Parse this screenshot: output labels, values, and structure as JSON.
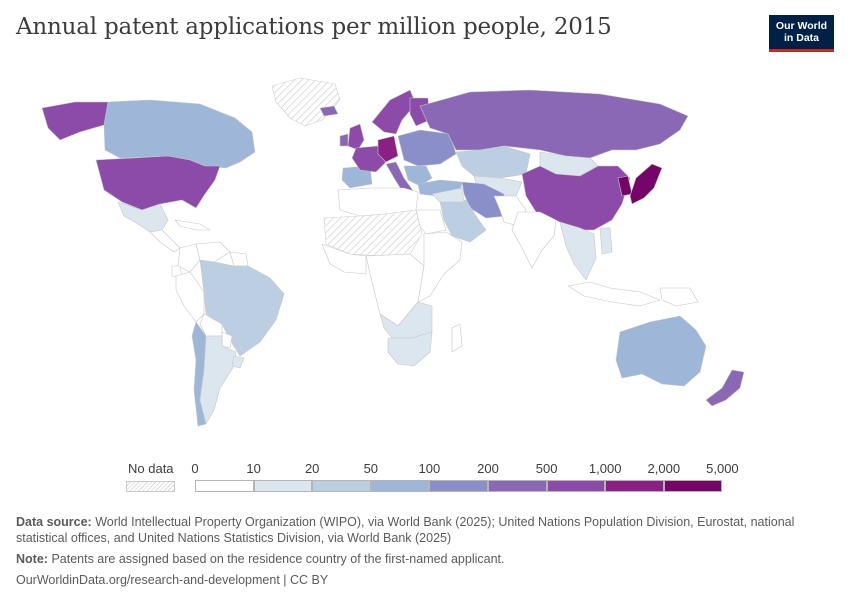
{
  "title": "Annual patent applications per million people, 2015",
  "logo": {
    "line1": "Our World",
    "line2": "in Data"
  },
  "legend": {
    "no_data_label": "No data",
    "ticks": [
      "0",
      "10",
      "20",
      "50",
      "100",
      "200",
      "500",
      "1,000",
      "2,000",
      "5,000"
    ],
    "colors": [
      "#ffffff",
      "#dbe6ee",
      "#bccfe2",
      "#9eb6d8",
      "#8a8fca",
      "#8b68b6",
      "#8c4ba8",
      "#8a1f86",
      "#76056a",
      "#3f0035"
    ]
  },
  "map_regions": [
    {
      "name": "Canada",
      "bin": 3
    },
    {
      "name": "United States",
      "bin": 6
    },
    {
      "name": "Alaska",
      "bin": 6
    },
    {
      "name": "Greenland",
      "bin": -1
    },
    {
      "name": "Mexico",
      "bin": 1
    },
    {
      "name": "Central America",
      "bin": 0
    },
    {
      "name": "Caribbean",
      "bin": 0
    },
    {
      "name": "Colombia",
      "bin": 0
    },
    {
      "name": "Venezuela",
      "bin": 0
    },
    {
      "name": "Guianas",
      "bin": 0
    },
    {
      "name": "Ecuador",
      "bin": 0
    },
    {
      "name": "Peru",
      "bin": 0
    },
    {
      "name": "Brazil",
      "bin": 2
    },
    {
      "name": "Bolivia",
      "bin": 0
    },
    {
      "name": "Paraguay",
      "bin": 0
    },
    {
      "name": "Chile",
      "bin": 3
    },
    {
      "name": "Argentina",
      "bin": 1
    },
    {
      "name": "Uruguay",
      "bin": 1
    },
    {
      "name": "Iceland",
      "bin": 5
    },
    {
      "name": "United Kingdom",
      "bin": 6
    },
    {
      "name": "Ireland",
      "bin": 5
    },
    {
      "name": "Iberia",
      "bin": 3
    },
    {
      "name": "France",
      "bin": 6
    },
    {
      "name": "Germany",
      "bin": 7
    },
    {
      "name": "Italy",
      "bin": 5
    },
    {
      "name": "Scandinavia",
      "bin": 6
    },
    {
      "name": "Finland",
      "bin": 6
    },
    {
      "name": "Eastern Europe",
      "bin": 4
    },
    {
      "name": "Balkans",
      "bin": 3
    },
    {
      "name": "Russia",
      "bin": 5
    },
    {
      "name": "Kazakhstan",
      "bin": 2
    },
    {
      "name": "Central Asia",
      "bin": 1
    },
    {
      "name": "Turkey",
      "bin": 3
    },
    {
      "name": "Mongolia",
      "bin": 1
    },
    {
      "name": "China",
      "bin": 6
    },
    {
      "name": "Korea",
      "bin": 8
    },
    {
      "name": "Japan",
      "bin": 8
    },
    {
      "name": "Iran",
      "bin": 4
    },
    {
      "name": "Saudi Arabia",
      "bin": 2
    },
    {
      "name": "Middle East",
      "bin": 1
    },
    {
      "name": "Afghanistan and Pakistan",
      "bin": 0
    },
    {
      "name": "India",
      "bin": 0
    },
    {
      "name": "Southeast Asia",
      "bin": 1
    },
    {
      "name": "Philippines",
      "bin": 1
    },
    {
      "name": "Indonesia",
      "bin": 0
    },
    {
      "name": "Papua New Guinea",
      "bin": 0
    },
    {
      "name": "North Africa",
      "bin": 0
    },
    {
      "name": "Sahara and Sahel",
      "bin": -1
    },
    {
      "name": "Egypt",
      "bin": 0
    },
    {
      "name": "West Africa",
      "bin": 0
    },
    {
      "name": "Central Africa",
      "bin": 0
    },
    {
      "name": "East Africa",
      "bin": 0
    },
    {
      "name": "Southern Africa",
      "bin": 1
    },
    {
      "name": "South Africa",
      "bin": 1
    },
    {
      "name": "Madagascar",
      "bin": 0
    },
    {
      "name": "Australia",
      "bin": 3
    },
    {
      "name": "New Zealand",
      "bin": 5
    }
  ],
  "footer": {
    "source_label": "Data source:",
    "source_text": "World Intellectual Property Organization (WIPO), via World Bank (2025); United Nations Population Division, Eurostat, national statistical offices, and United Nations Statistics Division, via World Bank (2025)",
    "note_label": "Note:",
    "note_text": "Patents are assigned based on the residence country of the first-named applicant.",
    "url": "OurWorldinData.org/research-and-development | CC BY"
  }
}
